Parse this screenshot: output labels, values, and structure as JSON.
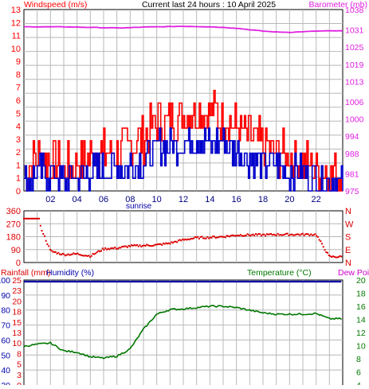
{
  "colors": {
    "wind": "#ff0000",
    "gust_avg": "#0000cc",
    "barometer": "#e020e0",
    "direction": "#dd0000",
    "rain": "#dd0000",
    "humidity": "#0000aa",
    "temperature": "#007700",
    "dew_point": "#cc00cc",
    "grid": "#b8b8b8"
  },
  "header": {
    "wind_title": "Windspeed (m/s)",
    "center_title": "Current last 24 hours : 10 April 2025",
    "baro_title": "Barometer (mb)"
  },
  "chart_data": [
    {
      "type": "line",
      "name": "wind",
      "x_ticks": [
        "02",
        "04",
        "06",
        "08",
        "10",
        "12",
        "14",
        "16",
        "18",
        "20",
        "22"
      ],
      "x_tick_hours": [
        2,
        4,
        6,
        8,
        10,
        12,
        14,
        16,
        18,
        20,
        22
      ],
      "x_range_hours": [
        0,
        24
      ],
      "sunrise_label": "sunrise",
      "sunrise_hour": 8.4,
      "y_left_ticks": [
        "0",
        "1",
        "1",
        "2",
        "3",
        "4",
        "5",
        "6",
        "7",
        "8",
        "9",
        "10",
        "11",
        "12",
        "13"
      ],
      "y_left_ticks_note": "",
      "y_left": [
        0,
        1,
        1,
        2,
        3,
        4,
        5,
        6,
        7,
        8,
        9,
        10,
        11,
        12,
        13
      ],
      "y_left_labels": [
        "0",
        "1",
        "1",
        "2",
        "3",
        "4",
        "5",
        "6",
        "7",
        "8",
        "9",
        "10",
        "11",
        "12",
        "13"
      ],
      "ylim_left": [
        0,
        13
      ],
      "y_right": [
        975,
        978,
        981,
        984,
        988,
        991,
        994,
        997,
        1000,
        1003,
        1006,
        1010,
        1013,
        1016,
        1019,
        1022,
        1025,
        1028,
        1031,
        1034
      ],
      "y_right_ticks": [
        "975",
        "981",
        "988",
        "994",
        "1000",
        "1006",
        "1013",
        "1019",
        "1025",
        "1031",
        "1038"
      ],
      "ylim_right": [
        975,
        1038
      ],
      "gust_hourly": [
        1.3,
        2.4,
        2.2,
        1.6,
        1.9,
        2.5,
        2.6,
        2.9,
        3.2,
        3.8,
        5.0,
        5.3,
        5.5,
        5.8,
        5.6,
        5.3,
        4.6,
        3.8,
        3.3,
        2.8,
        2.4,
        2.0,
        1.7,
        1.2
      ],
      "avg_hourly": [
        0.6,
        1.3,
        1.2,
        0.8,
        1.0,
        1.4,
        1.5,
        1.7,
        1.9,
        2.3,
        3.0,
        3.3,
        3.4,
        3.6,
        3.5,
        3.3,
        2.8,
        2.3,
        2.0,
        1.7,
        1.4,
        1.2,
        1.0,
        0.6
      ],
      "baro_hourly": [
        1032,
        1032,
        1032,
        1032,
        1031.9,
        1031.8,
        1031.7,
        1031.6,
        1031.7,
        1031.9,
        1032,
        1032.1,
        1032.2,
        1032.1,
        1032,
        1031.8,
        1031.5,
        1031,
        1030.5,
        1030.2,
        1030.1,
        1030.3,
        1030.5,
        1030.6
      ]
    },
    {
      "type": "scatter",
      "name": "wind_direction",
      "y_ticks": [
        "0",
        "90",
        "180",
        "270",
        "360"
      ],
      "y_values": [
        0,
        90,
        180,
        270,
        360
      ],
      "y_right_ticks": [
        "N",
        "E",
        "S",
        "W",
        "N"
      ],
      "ylim": [
        0,
        360
      ],
      "direction_hourly": [
        306,
        306,
        80,
        55,
        60,
        45,
        95,
        100,
        115,
        118,
        122,
        135,
        158,
        172,
        175,
        180,
        190,
        192,
        192,
        195,
        195,
        195,
        195,
        40
      ]
    },
    {
      "type": "line",
      "name": "rain_humidity_temperature",
      "rain_title": "Rainfall (mm)",
      "humidity_title": "Humidity (%)",
      "temp_title": "Temperature (°C)",
      "dew_title": "Dew Point",
      "y_rain_ticks": [
        "0",
        "5",
        "10",
        "15",
        "20",
        "25"
      ],
      "y_humidity_ticks": [
        "40",
        "50",
        "60",
        "70",
        "80",
        "90",
        "100"
      ],
      "y_humidity_labels": [
        "30",
        "40",
        "50",
        "60",
        "70",
        "80",
        "90",
        "100"
      ],
      "y_humidity_values": [
        30,
        40,
        50,
        60,
        70,
        80,
        90,
        100
      ],
      "y_rain_values": [
        0,
        2.5,
        5,
        7.5,
        10,
        12.5,
        15,
        17.5,
        20,
        22.5,
        25
      ],
      "y_rain_labels": [
        "0",
        "3",
        "5",
        "8",
        "10",
        "13",
        "15",
        "18",
        "20",
        "23",
        "25"
      ],
      "y_temp_labels": [
        "4",
        "6",
        "8",
        "10",
        "12",
        "14",
        "16",
        "18",
        "20"
      ],
      "y_temp_values": [
        4,
        6,
        8,
        10,
        12,
        14,
        16,
        18,
        20
      ],
      "temp_hourly": [
        9.9,
        10.2,
        10.4,
        9.2,
        9.0,
        8.3,
        8.1,
        8.4,
        9.5,
        12.5,
        14.8,
        15.5,
        15.6,
        15.8,
        16.0,
        16.0,
        15.8,
        15.4,
        15.0,
        14.8,
        14.8,
        14.8,
        14.9,
        14.1
      ],
      "humidity_hourly": [
        100,
        100,
        100,
        100,
        100,
        100,
        100,
        100,
        100,
        100,
        100,
        100,
        100,
        100,
        100,
        100,
        100,
        100,
        100,
        100,
        100,
        100,
        100,
        100
      ]
    }
  ]
}
